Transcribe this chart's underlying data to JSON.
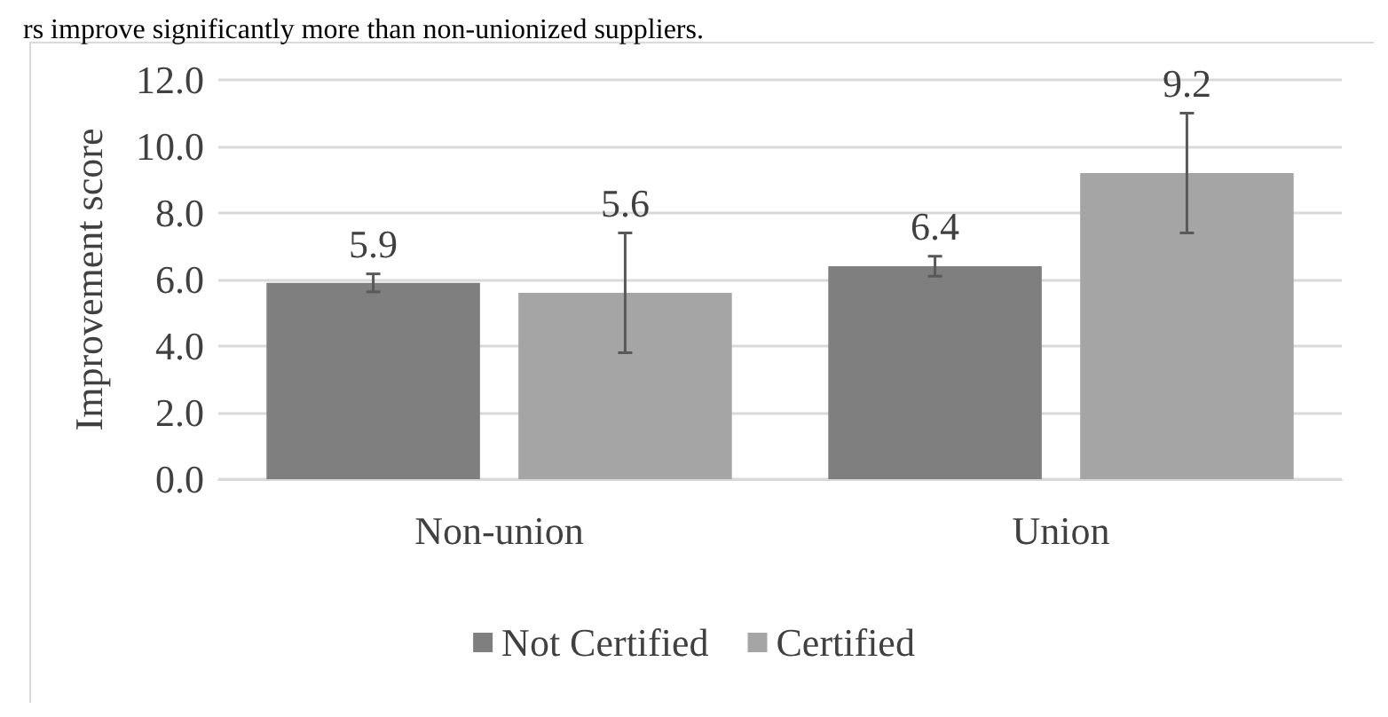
{
  "chart_data": {
    "type": "bar",
    "ylabel": "Improvement score",
    "annotations": [
      "rs improve significantly more than non-unionized suppliers."
    ],
    "categories": [
      "Non-union",
      "Union"
    ],
    "series": [
      {
        "name": "Not Certified",
        "color": "#7f7f7f",
        "values": [
          5.9,
          6.4
        ],
        "errors": [
          0.27,
          0.3
        ]
      },
      {
        "name": "Certified",
        "color": "#a5a5a5",
        "values": [
          5.6,
          9.2
        ],
        "errors": [
          1.8,
          1.8
        ]
      }
    ],
    "ylim": [
      0,
      12
    ],
    "yticks": [
      {
        "value": 0,
        "label": "0.0"
      },
      {
        "value": 2,
        "label": "2.0"
      },
      {
        "value": 4,
        "label": "4.0"
      },
      {
        "value": 6,
        "label": "6.0"
      },
      {
        "value": 8,
        "label": "8.0"
      },
      {
        "value": 10,
        "label": "10.0"
      },
      {
        "value": 12,
        "label": "12.0"
      }
    ],
    "grid": "y",
    "legend": "bottom",
    "data_labels": true
  }
}
